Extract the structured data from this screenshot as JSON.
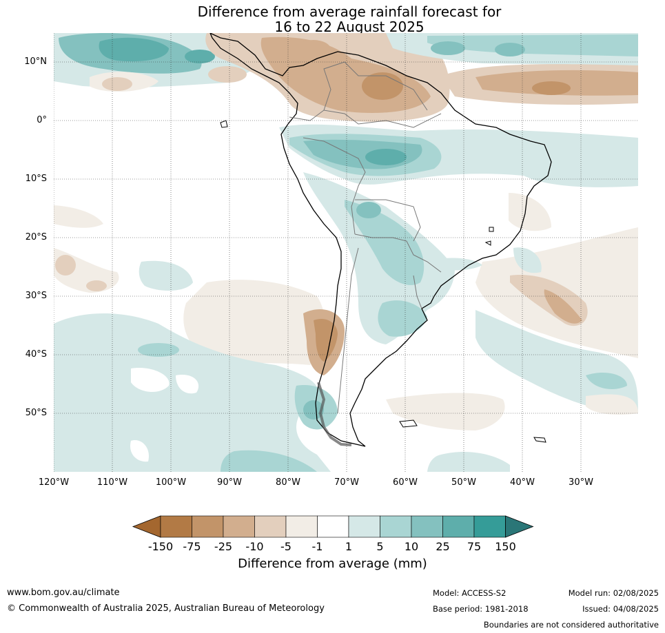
{
  "title": {
    "line1": "Difference from average rainfall forecast for",
    "line2": "16 to 22 August 2025"
  },
  "map": {
    "lat_labels": [
      "10°N",
      "0°",
      "10°S",
      "20°S",
      "30°S",
      "40°S",
      "50°S"
    ],
    "lon_labels": [
      "120°W",
      "110°W",
      "100°W",
      "90°W",
      "80°W",
      "70°W",
      "60°W",
      "50°W",
      "40°W",
      "30°W"
    ],
    "gridlines": true
  },
  "colorbar": {
    "title": "Difference from average (mm)",
    "tick_labels": [
      "-150",
      "-75",
      "-25",
      "-10",
      "-5",
      "-1",
      "1",
      "5",
      "10",
      "25",
      "75",
      "150"
    ],
    "colors": [
      "#a4672f",
      "#b27a45",
      "#c29469",
      "#d2ae8e",
      "#e3cfbd",
      "#f2ede6",
      "#ffffff",
      "#d5e8e7",
      "#a9d5d3",
      "#84c1bf",
      "#5eaeab",
      "#359c98",
      "#2a7677"
    ]
  },
  "footer": {
    "website": "www.bom.gov.au/climate",
    "copyright": "© Commonwealth of Australia 2025, Australian Bureau of Meteorology",
    "model": "Model: ACCESS-S2",
    "model_run": "Model run: 02/08/2025",
    "base_period": "Base period: 1981-2018",
    "issued": "Issued: 04/08/2025",
    "disclaimer": "Boundaries are not considered authoritative"
  }
}
